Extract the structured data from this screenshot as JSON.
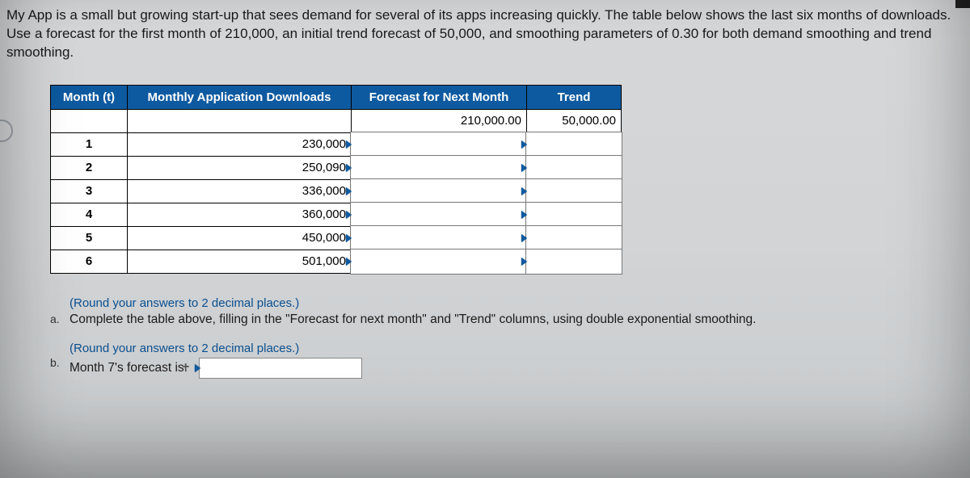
{
  "intro": "My App is a small but growing start-up that sees demand for several of its apps increasing quickly. The table below shows the last six months of downloads. Use a forecast for the first month of 210,000, an initial trend forecast of 50,000, and smoothing parameters of 0.30 for both demand smoothing and trend smoothing.",
  "table": {
    "headers": {
      "month": "Month (t)",
      "downloads": "Monthly Application Downloads",
      "forecast": "Forecast for Next Month",
      "trend": "Trend"
    },
    "initial": {
      "forecast": "210,000.00",
      "trend": "50,000.00"
    },
    "rows": [
      {
        "month": "1",
        "downloads": "230,000"
      },
      {
        "month": "2",
        "downloads": "250,090"
      },
      {
        "month": "3",
        "downloads": "336,000"
      },
      {
        "month": "4",
        "downloads": "360,000"
      },
      {
        "month": "5",
        "downloads": "450,000"
      },
      {
        "month": "6",
        "downloads": "501,000"
      }
    ]
  },
  "hint_text": "(Round your answers to 2 decimal places.)",
  "part_a": {
    "label": "a.",
    "text": "Complete the table above, filling in the \"Forecast for next month\" and \"Trend\" columns, using double exponential smoothing."
  },
  "part_b": {
    "label": "b.",
    "text": "Month 7's forecast is:"
  },
  "colors": {
    "header_bg": "#0e5aa0",
    "header_fg": "#ffffff",
    "border": "#000000",
    "hint": "#0a4f8f",
    "page_bg": "#d6d7d9"
  }
}
